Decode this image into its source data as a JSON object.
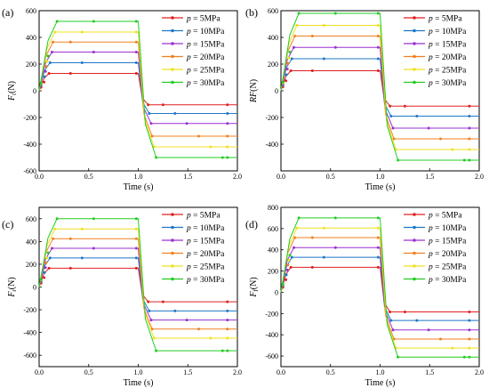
{
  "series_colors": [
    "#e02020",
    "#1f78c8",
    "#9b30d0",
    "#f08020",
    "#f0e020",
    "#22cc22"
  ],
  "chart_data": [
    {
      "type": "line",
      "panel_label": "(a)",
      "ylabel": "F_t(N)",
      "ylabel_main": "F",
      "ylabel_sub": "t",
      "ylabel_unit": "(N)",
      "xlabel": "Time (s)",
      "xlim": [
        0,
        2
      ],
      "ylim": [
        -600,
        600
      ],
      "xticks": [
        "0.0",
        "0.5",
        "1.0",
        "1.5",
        "2.0"
      ],
      "yticks": [
        "-600",
        "-400",
        "-200",
        "0",
        "200",
        "400",
        "600"
      ],
      "grid": false,
      "legend_position": "top-right",
      "series": [
        {
          "name": "p = 5MPa",
          "p": "p",
          "rest": " = 5MPa",
          "plateau_high": 130,
          "plateau_low": -105,
          "rise_time": 0.1
        },
        {
          "name": "p = 10MPa",
          "p": "p",
          "rest": " = 10MPa",
          "plateau_high": 210,
          "plateau_low": -170,
          "rise_time": 0.11
        },
        {
          "name": "p = 15MPa",
          "p": "p",
          "rest": " = 15MPa",
          "plateau_high": 290,
          "plateau_low": -245,
          "rise_time": 0.13
        },
        {
          "name": "p = 20MPa",
          "p": "p",
          "rest": " = 20MPa",
          "plateau_high": 365,
          "plateau_low": -340,
          "rise_time": 0.14
        },
        {
          "name": "p = 25MPa",
          "p": "p",
          "rest": " = 25MPa",
          "plateau_high": 440,
          "plateau_low": -420,
          "rise_time": 0.16
        },
        {
          "name": "p = 30MPa",
          "p": "p",
          "rest": " = 30MPa",
          "plateau_high": 520,
          "plateau_low": -500,
          "rise_time": 0.18
        }
      ]
    },
    {
      "type": "line",
      "panel_label": "(b)",
      "ylabel": "RF(N)",
      "ylabel_main": "RF",
      "ylabel_sub": "",
      "ylabel_unit": "(N)",
      "xlabel": "Time (s)",
      "xlim": [
        0,
        2
      ],
      "ylim": [
        -600,
        600
      ],
      "xticks": [
        "0.0",
        "0.5",
        "1.0",
        "1.5",
        "2.0"
      ],
      "yticks": [
        "-400",
        "-200",
        "0",
        "200",
        "400",
        "600"
      ],
      "grid": false,
      "legend_position": "top-right",
      "series": [
        {
          "name": "p = 5MPa",
          "p": "p",
          "rest": " = 5MPa",
          "plateau_high": 150,
          "plateau_low": -115,
          "rise_time": 0.1
        },
        {
          "name": "p = 10MPa",
          "p": "p",
          "rest": " = 10MPa",
          "plateau_high": 240,
          "plateau_low": -190,
          "rise_time": 0.11
        },
        {
          "name": "p = 15MPa",
          "p": "p",
          "rest": " = 15MPa",
          "plateau_high": 325,
          "plateau_low": -280,
          "rise_time": 0.13
        },
        {
          "name": "p = 20MPa",
          "p": "p",
          "rest": " = 20MPa",
          "plateau_high": 410,
          "plateau_low": -360,
          "rise_time": 0.14
        },
        {
          "name": "p = 25MPa",
          "p": "p",
          "rest": " = 25MPa",
          "plateau_high": 490,
          "plateau_low": -440,
          "rise_time": 0.16
        },
        {
          "name": "p = 30MPa",
          "p": "p",
          "rest": " = 30MPa",
          "plateau_high": 580,
          "plateau_low": -520,
          "rise_time": 0.18
        }
      ]
    },
    {
      "type": "line",
      "panel_label": "(c)",
      "ylabel": "F_r(N)",
      "ylabel_main": "F",
      "ylabel_sub": "r",
      "ylabel_unit": "(N)",
      "xlabel": "Time (s)",
      "xlim": [
        0,
        2
      ],
      "ylim": [
        -700,
        700
      ],
      "xticks": [
        "0.0",
        "0.5",
        "1.0",
        "1.5",
        "2.0"
      ],
      "yticks": [
        "-600",
        "-400",
        "-200",
        "0",
        "200",
        "400",
        "600"
      ],
      "grid": false,
      "legend_position": "top-right",
      "series": [
        {
          "name": "p = 5MPa",
          "p": "p",
          "rest": " = 5MPa",
          "plateau_high": 165,
          "plateau_low": -130,
          "rise_time": 0.1
        },
        {
          "name": "p = 10MPa",
          "p": "p",
          "rest": " = 10MPa",
          "plateau_high": 255,
          "plateau_low": -210,
          "rise_time": 0.11
        },
        {
          "name": "p = 15MPa",
          "p": "p",
          "rest": " = 15MPa",
          "plateau_high": 340,
          "plateau_low": -290,
          "rise_time": 0.13
        },
        {
          "name": "p = 20MPa",
          "p": "p",
          "rest": " = 20MPa",
          "plateau_high": 425,
          "plateau_low": -370,
          "rise_time": 0.14
        },
        {
          "name": "p = 25MPa",
          "p": "p",
          "rest": " = 25MPa",
          "plateau_high": 510,
          "plateau_low": -450,
          "rise_time": 0.16
        },
        {
          "name": "p = 30MPa",
          "p": "p",
          "rest": " = 30MPa",
          "plateau_high": 600,
          "plateau_low": -560,
          "rise_time": 0.18
        }
      ]
    },
    {
      "type": "line",
      "panel_label": "(d)",
      "ylabel": "F_f(N)",
      "ylabel_main": "F",
      "ylabel_sub": "f",
      "ylabel_unit": "(N)",
      "xlabel": "Time (s)",
      "xlim": [
        0,
        2
      ],
      "ylim": [
        -700,
        800
      ],
      "xticks": [
        "0.0",
        "0.5",
        "1.0",
        "1.5",
        "2.0"
      ],
      "yticks": [
        "-600",
        "-400",
        "-200",
        "0",
        "200",
        "400",
        "600",
        "800"
      ],
      "grid": false,
      "legend_position": "top-right",
      "series": [
        {
          "name": "p = 5MPa",
          "p": "p",
          "rest": " = 5MPa",
          "plateau_high": 235,
          "plateau_low": -185,
          "rise_time": 0.1
        },
        {
          "name": "p = 10MPa",
          "p": "p",
          "rest": " = 10MPa",
          "plateau_high": 330,
          "plateau_low": -265,
          "rise_time": 0.11
        },
        {
          "name": "p = 15MPa",
          "p": "p",
          "rest": " = 15MPa",
          "plateau_high": 420,
          "plateau_low": -355,
          "rise_time": 0.13
        },
        {
          "name": "p = 20MPa",
          "p": "p",
          "rest": " = 20MPa",
          "plateau_high": 515,
          "plateau_low": -440,
          "rise_time": 0.14
        },
        {
          "name": "p = 25MPa",
          "p": "p",
          "rest": " = 25MPa",
          "plateau_high": 605,
          "plateau_low": -525,
          "rise_time": 0.16
        },
        {
          "name": "p = 30MPa",
          "p": "p",
          "rest": " = 30MPa",
          "plateau_high": 700,
          "plateau_low": -610,
          "rise_time": 0.18
        }
      ]
    }
  ]
}
